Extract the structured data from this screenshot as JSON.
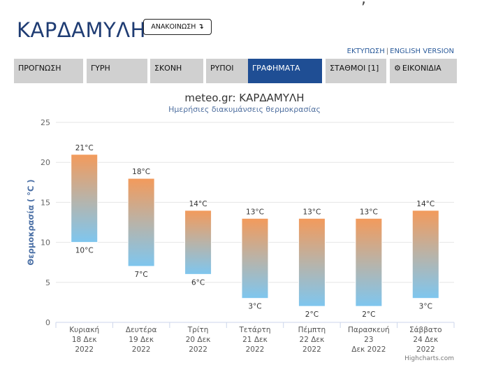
{
  "page": {
    "title": "ΚΑΡΔΑΜΥΛΗ",
    "announce_label": "ΑΝΑΚΟΙΝΩΣΗ",
    "announce_icon": "arrow-down-icon"
  },
  "top_links": {
    "print": "ΕΚΤΥΠΩΣΗ",
    "english": "ENGLISH VERSION"
  },
  "tabs": [
    {
      "label": "ΠΡΟΓΝΩΣΗ",
      "active": false
    },
    {
      "label": "ΓΥΡΗ",
      "active": false
    },
    {
      "label": "ΣΚΟΝΗ",
      "active": false
    },
    {
      "label": "ΡΥΠΟΙ",
      "active": false
    },
    {
      "label": "ΓΡΑΦΗΜΑΤΑ",
      "active": true
    },
    {
      "label": "ΣΤΑΘΜΟΙ [1]",
      "active": false
    },
    {
      "label": "ΕΙΚΟΝΙΔΙΑ",
      "active": false,
      "icon": "gear-icon"
    }
  ],
  "colors": {
    "accent": "#1f4e94",
    "tab_bg": "#d0d0d0",
    "bar_top": "#f39a5b",
    "bar_bottom": "#7ec6ef"
  },
  "chart_data": {
    "type": "bar",
    "title": "meteo.gr: ΚΑΡΔΑΜΥΛΗ",
    "subtitle": "Ημερήσιες διακυμάνσεις θερμοκρασίας",
    "ylabel": "Θερμοκρασία ( °C )",
    "xlabel": "",
    "ylim": [
      0,
      25
    ],
    "yticks": [
      0,
      5,
      10,
      15,
      20,
      25
    ],
    "grid": true,
    "categories": [
      [
        "Κυριακή",
        "18 Δεκ",
        "2022"
      ],
      [
        "Δευτέρα",
        "19 Δεκ",
        "2022"
      ],
      [
        "Τρίτη",
        "20 Δεκ",
        "2022"
      ],
      [
        "Τετάρτη",
        "21 Δεκ",
        "2022"
      ],
      [
        "Πέμπτη",
        "22 Δεκ",
        "2022"
      ],
      [
        "Παρασκευή",
        "23",
        "Δεκ 2022"
      ],
      [
        "Σάββατο",
        "24 Δεκ",
        "2022"
      ]
    ],
    "min": [
      10,
      7,
      6,
      3,
      2,
      2,
      3
    ],
    "max": [
      21,
      18,
      14,
      13,
      13,
      13,
      14
    ],
    "min_labels": [
      "10°C",
      "7°C",
      "6°C",
      "3°C",
      "2°C",
      "2°C",
      "3°C"
    ],
    "max_labels": [
      "21°C",
      "18°C",
      "14°C",
      "13°C",
      "13°C",
      "13°C",
      "14°C"
    ]
  },
  "credits": "Highcharts.com"
}
